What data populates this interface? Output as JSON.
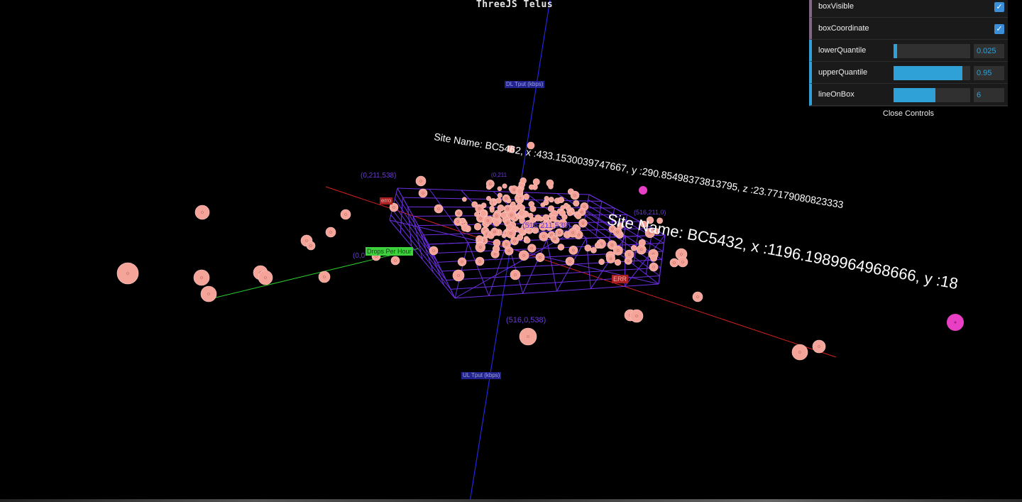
{
  "page": {
    "title": "ThreeJS Telus"
  },
  "controls": {
    "items": [
      {
        "label": "boxVisible",
        "type": "boolean",
        "checked": true
      },
      {
        "label": "boxCoordinate",
        "type": "boolean",
        "checked": true
      },
      {
        "label": "lowerQuantile",
        "type": "number",
        "value": "0.025",
        "fraction": 0.05
      },
      {
        "label": "upperQuantile",
        "type": "number",
        "value": "0.95",
        "fraction": 0.9
      },
      {
        "label": "lineOnBox",
        "type": "number",
        "value": "6",
        "fraction": 0.55
      }
    ],
    "close_label": "Close Controls"
  },
  "scene": {
    "axis_labels": {
      "vertical_top": "DL Tput (kbps)",
      "vertical_bottom": "UL Tput (kbps)",
      "green_axis": "Drops Per Hour",
      "red_axis_a": "erro",
      "red_axis_b": "ERR"
    },
    "corner_labels": {
      "top_left": "(0,211,538)",
      "top_mid": "(0,211",
      "right": "(516,211,0)",
      "left": "(0,0",
      "inner": "(516,211,538)",
      "bottom": "(516,0,538)"
    },
    "site_labels": [
      "Site Name: BC5462, x :433.1530039747667, y :290.85498373813795, z :23.77179080823333",
      "Site Name: BC5432, x :1196.1989964968666, y :18"
    ],
    "colors": {
      "point": "#f5a49a",
      "highlight": "#e83fc4",
      "box": "#6a2ee0",
      "axis_vertical": "#2424e0",
      "axis_red": "#d42020",
      "axis_green": "#2ecc2e"
    }
  }
}
